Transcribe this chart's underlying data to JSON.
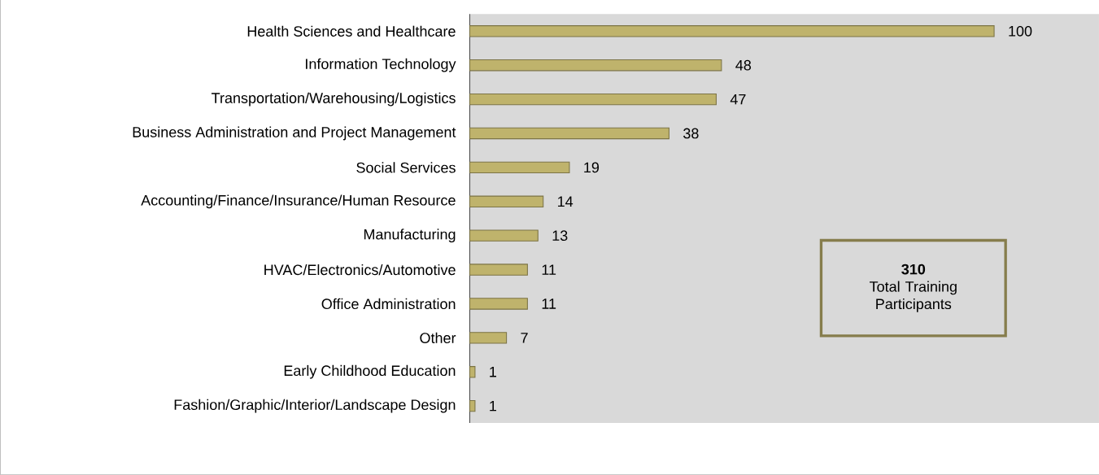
{
  "chart_data": {
    "type": "bar",
    "orientation": "horizontal",
    "categories": [
      "Health Sciences and Healthcare",
      "Information Technology",
      "Transportation/Warehousing/Logistics",
      "Business Administration and Project Management",
      "Social Services",
      "Accounting/Finance/Insurance/Human Resource",
      "Manufacturing",
      "HVAC/Electronics/Automotive",
      "Office Administration",
      "Other",
      "Early Childhood Education",
      "Fashion/Graphic/Interior/Landscape Design"
    ],
    "values": [
      100,
      48,
      47,
      38,
      19,
      14,
      13,
      11,
      11,
      7,
      1,
      1
    ],
    "color": "#bfb36c",
    "data_labels": true,
    "xlim": [
      0,
      120
    ],
    "tick_labels": "y",
    "annotations": [
      "310",
      "Total Training Participants"
    ]
  }
}
